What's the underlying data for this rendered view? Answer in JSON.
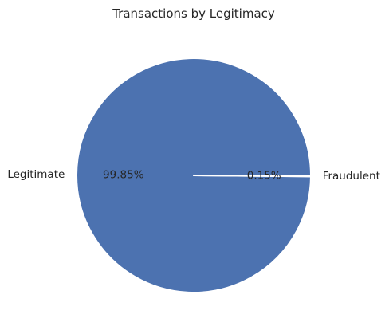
{
  "chart_data": {
    "type": "pie",
    "title": "Transactions by Legitimacy",
    "slices": [
      {
        "label": "Legitimate",
        "value": 99.85,
        "pct_label": "99.85%",
        "color": "#4c72b0"
      },
      {
        "label": "Fraudulent",
        "value": 0.15,
        "pct_label": "0.15%",
        "color": "#4c72b0"
      }
    ],
    "edge_color": "#ffffff",
    "legend": "none"
  }
}
